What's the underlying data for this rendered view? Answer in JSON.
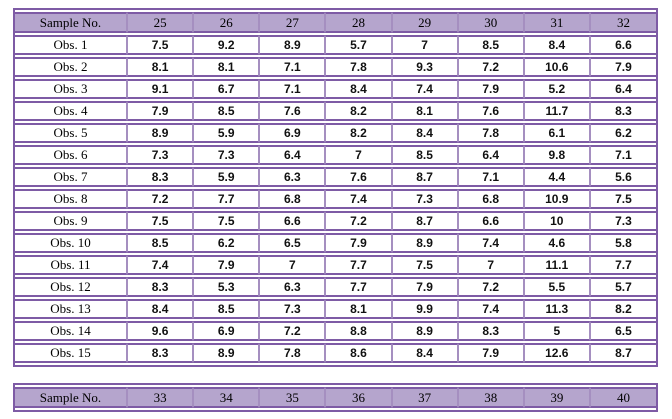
{
  "colors": {
    "header_fill": "#b5a5cd",
    "border": "#7e5ba5",
    "border_light": "#a58fc0"
  },
  "table1": {
    "header": [
      "Sample No.",
      "25",
      "26",
      "27",
      "28",
      "29",
      "30",
      "31",
      "32"
    ],
    "rows": [
      {
        "label": "Obs. 1",
        "values": [
          "7.5",
          "9.2",
          "8.9",
          "5.7",
          "7",
          "8.5",
          "8.4",
          "6.6"
        ]
      },
      {
        "label": "Obs. 2",
        "values": [
          "8.1",
          "8.1",
          "7.1",
          "7.8",
          "9.3",
          "7.2",
          "10.6",
          "7.9"
        ]
      },
      {
        "label": "Obs. 3",
        "values": [
          "9.1",
          "6.7",
          "7.1",
          "8.4",
          "7.4",
          "7.9",
          "5.2",
          "6.4"
        ]
      },
      {
        "label": "Obs. 4",
        "values": [
          "7.9",
          "8.5",
          "7.6",
          "8.2",
          "8.1",
          "7.6",
          "11.7",
          "8.3"
        ]
      },
      {
        "label": "Obs. 5",
        "values": [
          "8.9",
          "5.9",
          "6.9",
          "8.2",
          "8.4",
          "7.8",
          "6.1",
          "6.2"
        ]
      },
      {
        "label": "Obs. 6",
        "values": [
          "7.3",
          "7.3",
          "6.4",
          "7",
          "8.5",
          "6.4",
          "9.8",
          "7.1"
        ]
      },
      {
        "label": "Obs. 7",
        "values": [
          "8.3",
          "5.9",
          "6.3",
          "7.6",
          "8.7",
          "7.1",
          "4.4",
          "5.6"
        ]
      },
      {
        "label": "Obs. 8",
        "values": [
          "7.2",
          "7.7",
          "6.8",
          "7.4",
          "7.3",
          "6.8",
          "10.9",
          "7.5"
        ]
      },
      {
        "label": "Obs. 9",
        "values": [
          "7.5",
          "7.5",
          "6.6",
          "7.2",
          "8.7",
          "6.6",
          "10",
          "7.3"
        ]
      },
      {
        "label": "Obs. 10",
        "values": [
          "8.5",
          "6.2",
          "6.5",
          "7.9",
          "8.9",
          "7.4",
          "4.6",
          "5.8"
        ]
      },
      {
        "label": "Obs. 11",
        "values": [
          "7.4",
          "7.9",
          "7",
          "7.7",
          "7.5",
          "7",
          "11.1",
          "7.7"
        ]
      },
      {
        "label": "Obs. 12",
        "values": [
          "8.3",
          "5.3",
          "6.3",
          "7.7",
          "7.9",
          "7.2",
          "5.5",
          "5.7"
        ]
      },
      {
        "label": "Obs. 13",
        "values": [
          "8.4",
          "8.5",
          "7.3",
          "8.1",
          "9.9",
          "7.4",
          "11.3",
          "8.2"
        ]
      },
      {
        "label": "Obs. 14",
        "values": [
          "9.6",
          "6.9",
          "7.2",
          "8.8",
          "8.9",
          "8.3",
          "5",
          "6.5"
        ]
      },
      {
        "label": "Obs. 15",
        "values": [
          "8.3",
          "8.9",
          "7.8",
          "8.6",
          "8.4",
          "7.9",
          "12.6",
          "8.7"
        ]
      }
    ]
  },
  "table2": {
    "header": [
      "Sample No.",
      "33",
      "34",
      "35",
      "36",
      "37",
      "38",
      "39",
      "40"
    ],
    "rows": []
  }
}
